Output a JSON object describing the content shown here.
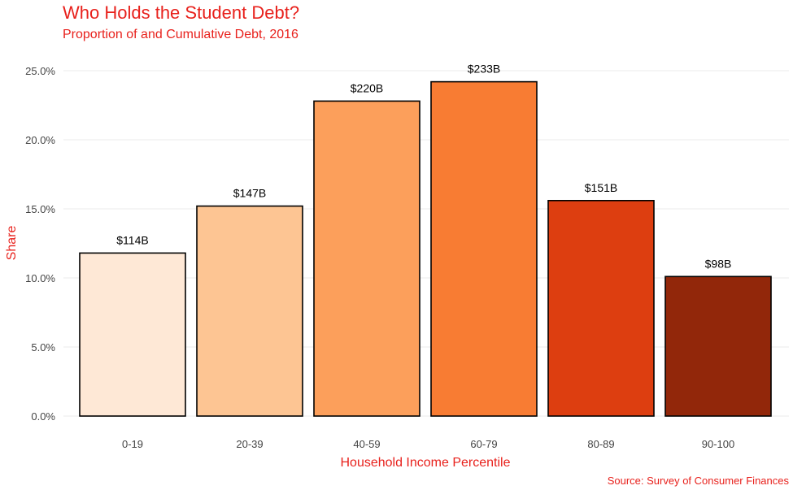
{
  "chart_data": {
    "type": "bar",
    "title": "Who Holds the Student Debt?",
    "subtitle": "Proportion of and Cumulative Debt, 2016",
    "xlabel": "Household Income Percentile",
    "ylabel": "Share",
    "caption": "Source: Survey of Consumer Finances",
    "categories": [
      "0-19",
      "20-39",
      "40-59",
      "60-79",
      "80-89",
      "90-100"
    ],
    "values": [
      11.8,
      15.2,
      22.8,
      24.2,
      15.6,
      10.1
    ],
    "value_labels": [
      "$114B",
      "$147B",
      "$220B",
      "$233B",
      "$151B",
      "$98B"
    ],
    "colors": [
      "#fee8d6",
      "#fdc593",
      "#fc9f5b",
      "#f87c33",
      "#dd3e10",
      "#92270a"
    ],
    "ylim": [
      0,
      25
    ],
    "yticks": [
      0,
      5,
      10,
      15,
      20,
      25
    ],
    "ytick_labels": [
      "0.0%",
      "5.0%",
      "10.0%",
      "15.0%",
      "20.0%",
      "25.0%"
    ],
    "grid": true,
    "text_color": "#e8211c"
  }
}
